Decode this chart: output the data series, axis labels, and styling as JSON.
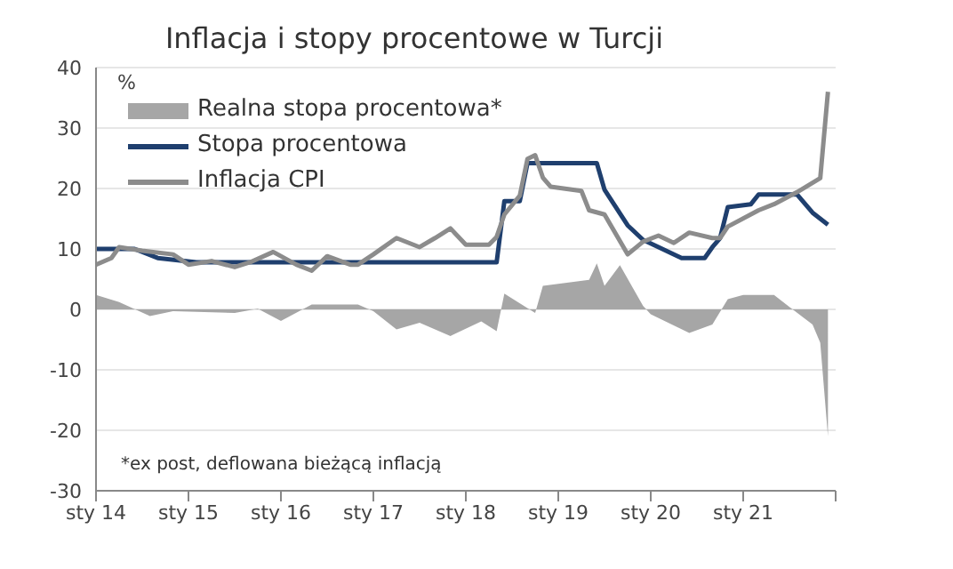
{
  "chart_data": {
    "type": "line",
    "title": "Inflacja i stopy procentowe w Turcji",
    "ylabel": "%",
    "annotations": [
      "*ex post, deflowana bieżącą inflacją"
    ],
    "xlim": [
      "2014-01",
      "2022-01"
    ],
    "xticks": [
      {
        "value": "2014-01",
        "label": "sty 14"
      },
      {
        "value": "2015-01",
        "label": "sty 15"
      },
      {
        "value": "2016-01",
        "label": "sty 16"
      },
      {
        "value": "2017-01",
        "label": "sty 17"
      },
      {
        "value": "2018-01",
        "label": "sty 18"
      },
      {
        "value": "2019-01",
        "label": "sty 19"
      },
      {
        "value": "2020-01",
        "label": "sty 20"
      },
      {
        "value": "2021-01",
        "label": "sty 21"
      },
      {
        "value": "2022-01",
        "label": null
      }
    ],
    "ylim": [
      -30,
      40
    ],
    "yticks": [
      -30,
      -20,
      -10,
      0,
      10,
      20,
      30,
      40
    ],
    "grid": "y",
    "legend": "top left",
    "marker": "none",
    "series": [
      {
        "name": "Realna stopa procentowa*",
        "type": "area",
        "color": "#a6a6a6",
        "x": [
          "2014-01",
          "2014-04",
          "2014-08",
          "2014-11",
          "2015-07",
          "2015-10",
          "2016-01",
          "2016-05",
          "2016-11",
          "2017-01",
          "2017-04",
          "2017-07",
          "2017-11",
          "2018-03",
          "2018-05",
          "2018-06",
          "2018-10",
          "2018-11",
          "2019-05",
          "2019-06",
          "2019-07",
          "2019-09",
          "2019-12",
          "2020-01",
          "2020-06",
          "2020-09",
          "2020-11",
          "2021-01",
          "2021-05",
          "2021-07",
          "2021-10",
          "2021-11",
          "2021-12"
        ],
        "values": [
          2.4,
          1.2,
          -1.1,
          -0.3,
          -0.6,
          0.1,
          -1.9,
          0.8,
          0.8,
          -0.3,
          -3.3,
          -2.2,
          -4.4,
          -2,
          -3.6,
          2.6,
          -0.6,
          3.9,
          4.9,
          7.6,
          3.9,
          7.3,
          0.6,
          -0.8,
          -3.9,
          -2.5,
          1.7,
          2.4,
          2.4,
          0.4,
          -2.5,
          -5.5,
          -21
        ]
      },
      {
        "name": "Stopa procentowa",
        "color": "#1f3f6e",
        "x": [
          "2014-01",
          "2014-06",
          "2014-09",
          "2015-02",
          "2018-05",
          "2018-06",
          "2018-08",
          "2018-09",
          "2019-06",
          "2019-07",
          "2019-10",
          "2019-12",
          "2020-05",
          "2020-08",
          "2020-09",
          "2020-10",
          "2020-11",
          "2021-02",
          "2021-03",
          "2021-08",
          "2021-10",
          "2021-12"
        ],
        "values": [
          10,
          10,
          8.5,
          7.8,
          7.8,
          17.9,
          17.9,
          24.2,
          24.2,
          19.8,
          13.9,
          11.5,
          8.5,
          8.5,
          10.3,
          11.8,
          16.9,
          17.4,
          19,
          19,
          16,
          14
        ]
      },
      {
        "name": "Inflacja CPI",
        "color": "#8c8c8c",
        "x": [
          "2014-01",
          "2014-03",
          "2014-04",
          "2014-07",
          "2014-11",
          "2015-01",
          "2015-04",
          "2015-07",
          "2015-09",
          "2015-12",
          "2016-03",
          "2016-05",
          "2016-07",
          "2016-10",
          "2016-11",
          "2017-01",
          "2017-04",
          "2017-07",
          "2017-09",
          "2017-11",
          "2018-01",
          "2018-04",
          "2018-05",
          "2018-06",
          "2018-08",
          "2018-09",
          "2018-10",
          "2018-11",
          "2018-12",
          "2019-04",
          "2019-05",
          "2019-07",
          "2019-10",
          "2019-12",
          "2020-02",
          "2020-04",
          "2020-06",
          "2020-09",
          "2020-10",
          "2020-11",
          "2021-03",
          "2021-05",
          "2021-08",
          "2021-11",
          "2021-12"
        ],
        "values": [
          7.4,
          8.5,
          10.3,
          9.7,
          9.1,
          7.4,
          8,
          7,
          7.8,
          9.5,
          7.4,
          6.4,
          8.8,
          7.4,
          7.4,
          9.1,
          11.8,
          10.3,
          11.8,
          13.4,
          10.7,
          10.7,
          12,
          15.7,
          18.8,
          24.9,
          25.5,
          21.8,
          20.3,
          19.6,
          16.4,
          15.7,
          9.1,
          11.2,
          12.2,
          11,
          12.7,
          11.8,
          11.8,
          13.7,
          16.4,
          17.4,
          19.4,
          21.7,
          36
        ]
      }
    ]
  }
}
